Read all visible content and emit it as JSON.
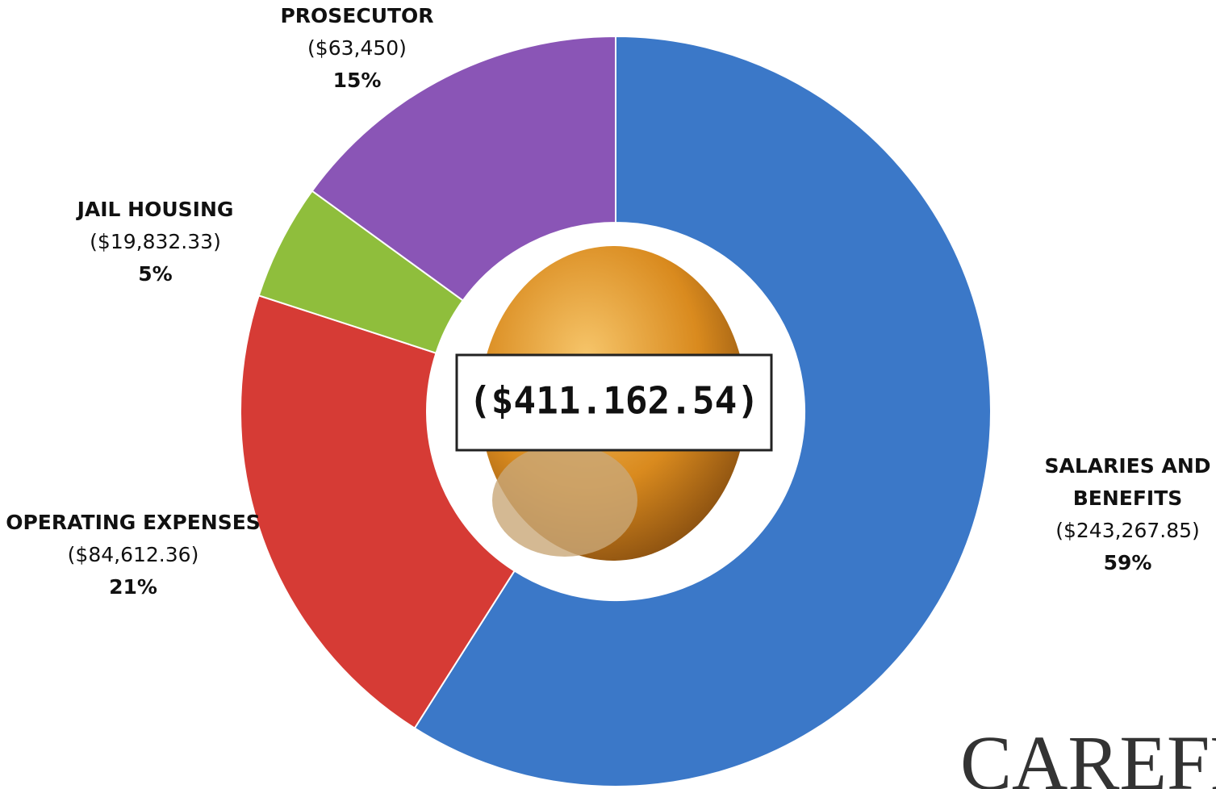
{
  "chart_data": {
    "type": "donut",
    "categories": [
      "SALARIES AND BENEFITS",
      "OPERATING EXPENSES",
      "JAIL HOUSING",
      "PROSECUTOR"
    ],
    "values": [
      59,
      21,
      5,
      15
    ],
    "value_labels": [
      "59%",
      "21%",
      "5%",
      "15%"
    ],
    "amount_labels": [
      "($243,267.85)",
      "($84,612.36)",
      "($19,832.33)",
      "($63,450)"
    ],
    "colors": [
      "#3b78c8",
      "#d63b35",
      "#8fbe3c",
      "#8a55b6"
    ],
    "total_label": "($411.162.54)",
    "watermark": "CAREFR"
  }
}
